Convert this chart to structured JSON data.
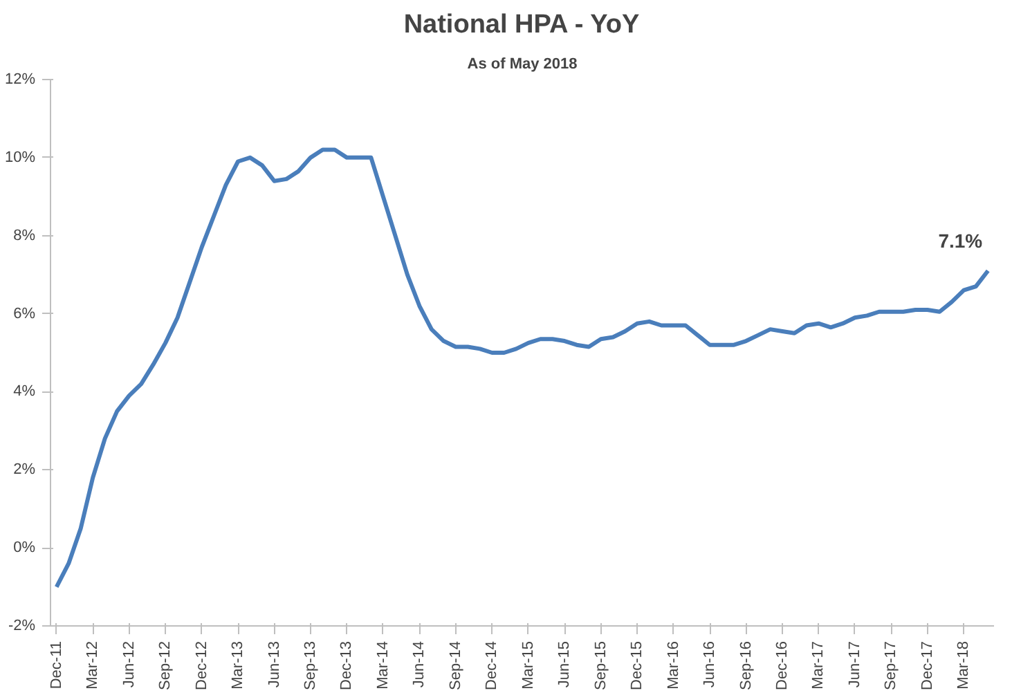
{
  "chart_data": {
    "type": "line",
    "title": "National HPA - YoY",
    "subtitle": "As of May 2018",
    "categories": [
      "Dec-11",
      null,
      null,
      "Mar-12",
      null,
      null,
      "Jun-12",
      null,
      null,
      "Sep-12",
      null,
      null,
      "Dec-12",
      null,
      null,
      "Mar-13",
      null,
      null,
      "Jun-13",
      null,
      null,
      "Sep-13",
      null,
      null,
      "Dec-13",
      null,
      null,
      "Mar-14",
      null,
      null,
      "Jun-14",
      null,
      null,
      "Sep-14",
      null,
      null,
      "Dec-14",
      null,
      null,
      "Mar-15",
      null,
      null,
      "Jun-15",
      null,
      null,
      "Sep-15",
      null,
      null,
      "Dec-15",
      null,
      null,
      "Mar-16",
      null,
      null,
      "Jun-16",
      null,
      null,
      "Sep-16",
      null,
      null,
      "Dec-16",
      null,
      null,
      "Mar-17",
      null,
      null,
      "Jun-17",
      null,
      null,
      "Sep-17",
      null,
      null,
      "Dec-17",
      null,
      null,
      "Mar-18",
      null,
      null
    ],
    "series": [
      {
        "color": "#4a7ebb",
        "values": [
          -1.0,
          -0.4,
          0.5,
          1.8,
          2.8,
          3.5,
          3.9,
          4.2,
          4.7,
          5.25,
          5.9,
          6.8,
          7.7,
          8.5,
          9.3,
          9.9,
          10.0,
          9.8,
          9.4,
          9.45,
          9.65,
          10.0,
          10.2,
          10.2,
          10.0,
          10.0,
          10.0,
          9.0,
          8.0,
          7.0,
          6.2,
          5.6,
          5.3,
          5.15,
          5.15,
          5.1,
          5.0,
          5.0,
          5.1,
          5.25,
          5.35,
          5.35,
          5.3,
          5.2,
          5.15,
          5.35,
          5.4,
          5.55,
          5.75,
          5.8,
          5.7,
          5.7,
          5.7,
          5.45,
          5.2,
          5.2,
          5.2,
          5.3,
          5.45,
          5.6,
          5.55,
          5.5,
          5.7,
          5.75,
          5.65,
          5.75,
          5.9,
          5.95,
          6.05,
          6.05,
          6.05,
          6.1,
          6.1,
          6.05,
          6.3,
          6.6,
          6.7,
          7.1
        ]
      }
    ],
    "ylim": [
      -2,
      12
    ],
    "yticks": [
      {
        "value": -2,
        "label": "-2%"
      },
      {
        "value": 0,
        "label": "0%"
      },
      {
        "value": 2,
        "label": "2%"
      },
      {
        "value": 4,
        "label": "4%"
      },
      {
        "value": 6,
        "label": "6%"
      },
      {
        "value": 8,
        "label": "8%"
      },
      {
        "value": 10,
        "label": "10%"
      },
      {
        "value": 12,
        "label": "12%"
      }
    ],
    "annotations": [
      "7.1%"
    ],
    "grid": false
  }
}
